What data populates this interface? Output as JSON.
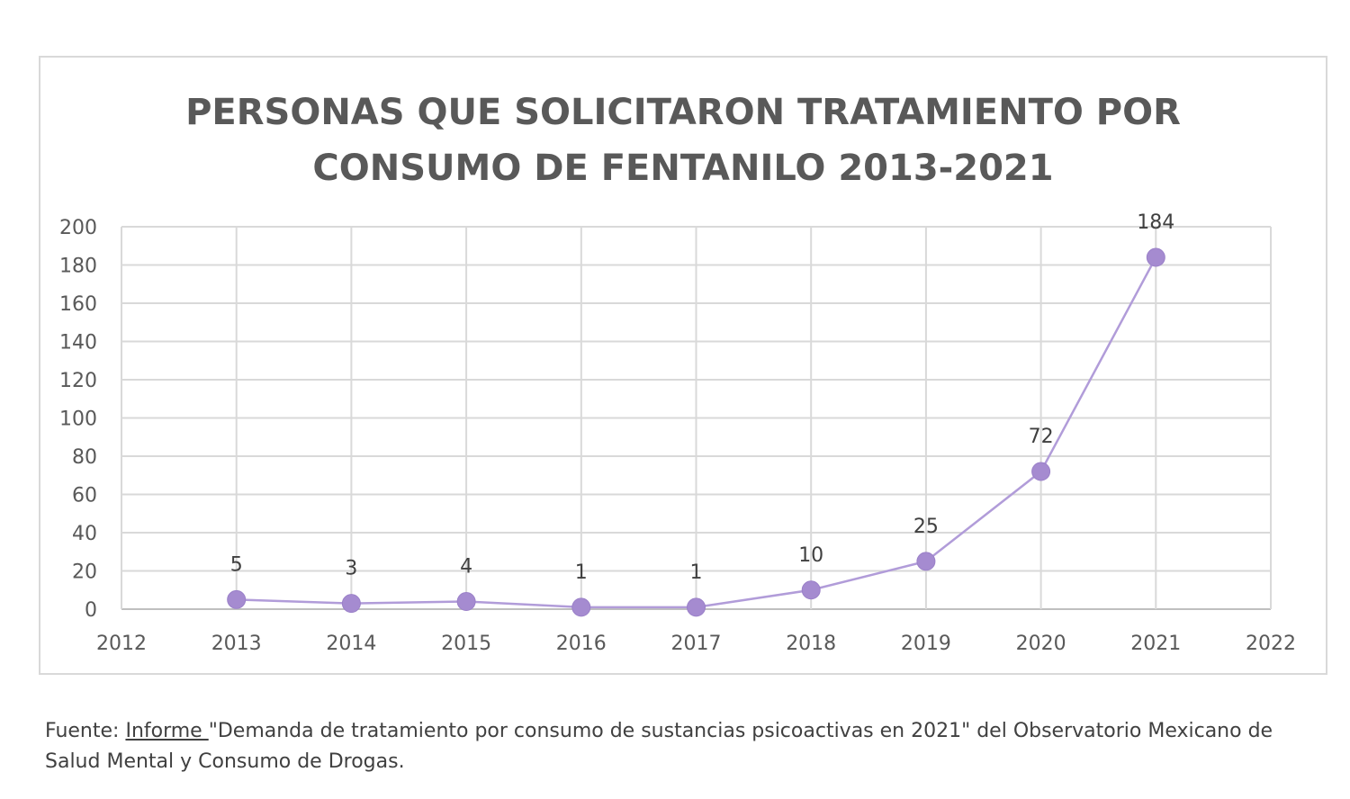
{
  "chart_data": {
    "type": "line",
    "title_lines": [
      "PERSONAS QUE SOLICITARON TRATAMIENTO POR",
      "CONSUMO DE FENTANILO 2013-2021"
    ],
    "x": [
      2013,
      2014,
      2015,
      2016,
      2017,
      2018,
      2019,
      2020,
      2021
    ],
    "series": [
      {
        "values": [
          5,
          3,
          4,
          1,
          1,
          10,
          25,
          72,
          184
        ]
      }
    ],
    "data_labels": [
      "5",
      "3",
      "4",
      "1",
      "1",
      "10",
      "25",
      "72",
      "184"
    ],
    "xlim": [
      2012,
      2022
    ],
    "x_ticks": [
      "2012",
      "2013",
      "2014",
      "2015",
      "2016",
      "2017",
      "2018",
      "2019",
      "2020",
      "2021",
      "2022"
    ],
    "ylim": [
      0,
      200
    ],
    "y_ticks": [
      "0",
      "20",
      "40",
      "60",
      "80",
      "100",
      "120",
      "140",
      "160",
      "180",
      "200"
    ],
    "grid": true,
    "line_color": "#b19cd9",
    "marker_color": "#a58bd0"
  },
  "source": {
    "prefix": "Fuente: ",
    "link_text": "Informe ",
    "rest": " \"Demanda de tratamiento por consumo de sustancias psicoactivas en 2021\" del Observatorio Mexicano de Salud Mental y Consumo de Drogas."
  }
}
